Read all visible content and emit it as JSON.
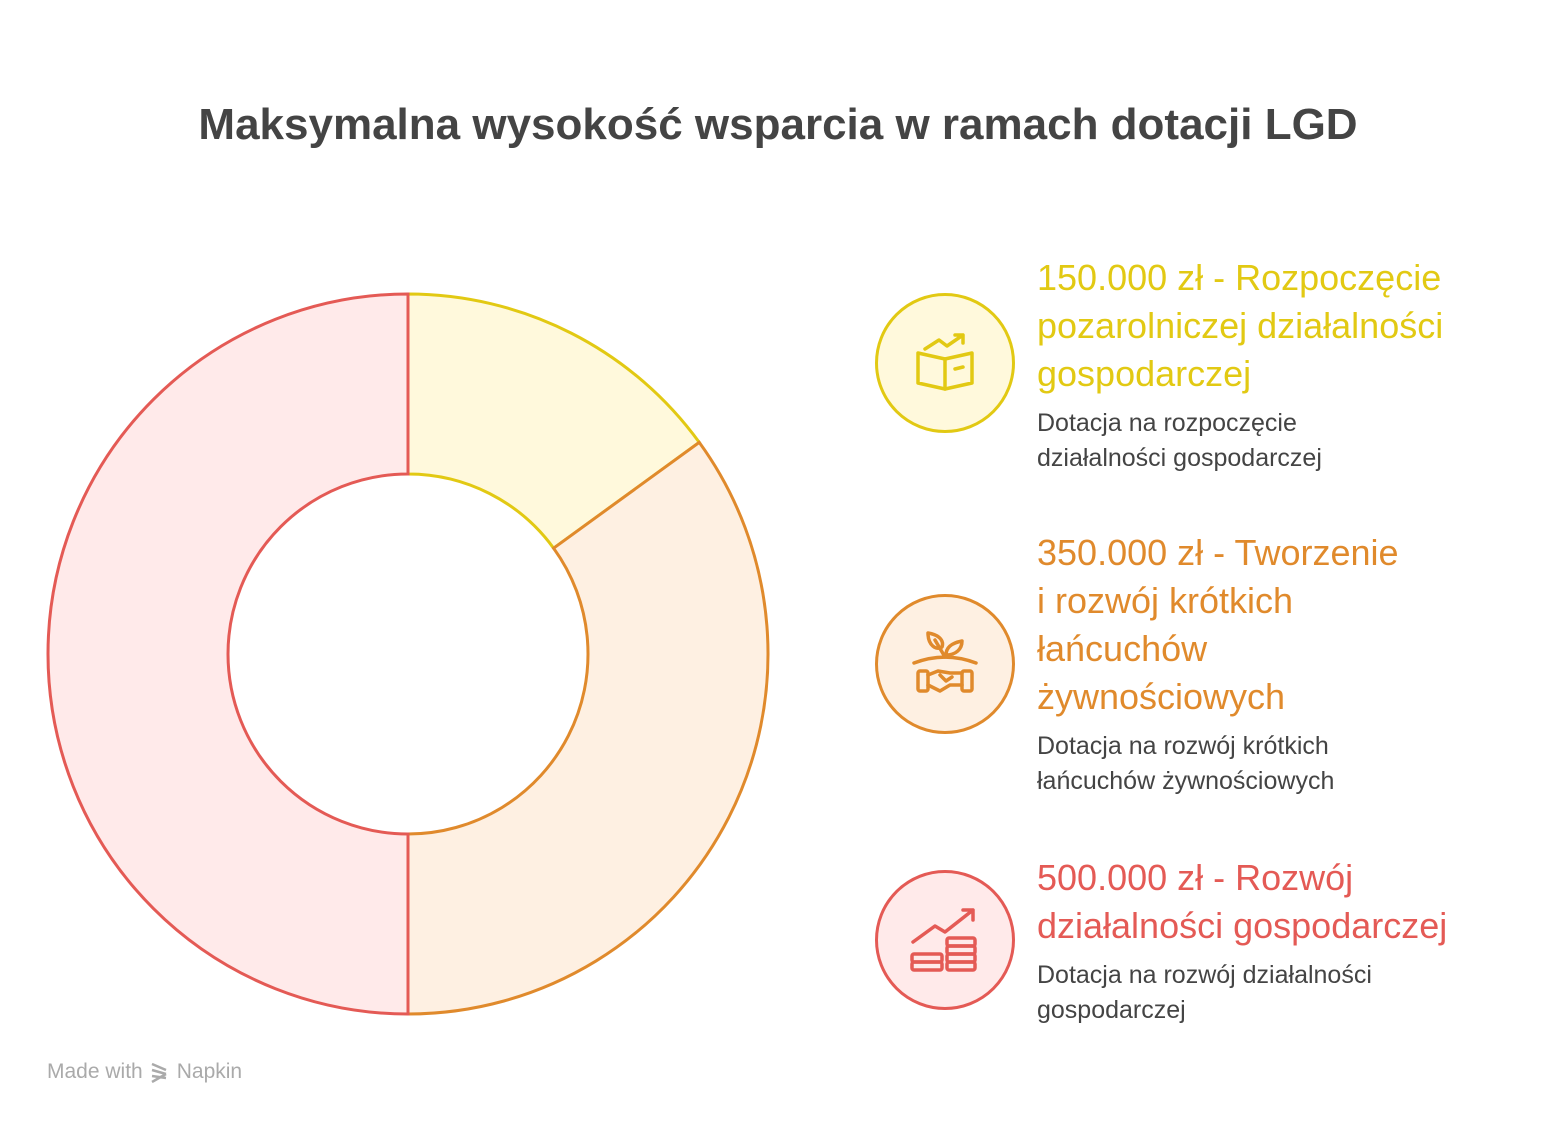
{
  "chart_data": {
    "type": "pie",
    "donut": true,
    "title": "Maksymalna wysokość wsparcia w ramach dotacji LGD",
    "series": [
      {
        "name": "150.000 zł - Rozpoczęcie pozarolniczej działalności gospodarczej",
        "value": 150000,
        "stroke": "#E2C913",
        "fill": "#FFF9DC"
      },
      {
        "name": "350.000 zł - Tworzenie i rozwój krótkich łańcuchów żywnościowych",
        "value": 350000,
        "stroke": "#E08A2C",
        "fill": "#FEF0E2"
      },
      {
        "name": "500.000 zł - Rozwój działalności gospodarczej",
        "value": 500000,
        "stroke": "#E45A55",
        "fill": "#FFEAEA"
      }
    ],
    "legend_position": "right"
  },
  "items": [
    {
      "title_lines": [
        "150.000 zł - Rozpoczęcie",
        "pozarolniczej działalności",
        "gospodarczej"
      ],
      "desc_lines": [
        "Dotacja na rozpoczęcie",
        "działalności gospodarczej"
      ],
      "icon": "box-growth-icon",
      "color": "#E2C913",
      "bg": "#FFF9DC"
    },
    {
      "title_lines": [
        "350.000 zł - Tworzenie",
        "i rozwój krótkich",
        "łańcuchów",
        "żywnościowych"
      ],
      "desc_lines": [
        "Dotacja na rozwój krótkich",
        "łańcuchów żywnościowych"
      ],
      "icon": "handshake-plant-icon",
      "color": "#E08A2C",
      "bg": "#FEF0E2"
    },
    {
      "title_lines": [
        "500.000 zł - Rozwój",
        "działalności gospodarczej"
      ],
      "desc_lines": [
        "Dotacja na rozwój działalności",
        "gospodarczej"
      ],
      "icon": "coins-growth-icon",
      "color": "#E45A55",
      "bg": "#FFEAEA"
    }
  ],
  "footer": {
    "made_with": "Made with",
    "brand": "Napkin"
  }
}
